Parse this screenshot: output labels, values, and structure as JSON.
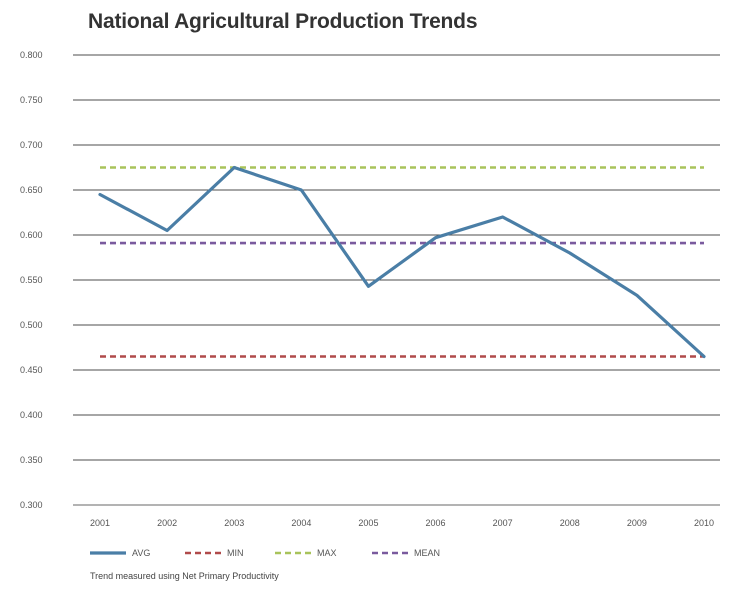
{
  "chart_data": {
    "type": "line",
    "title": "National Agricultural Production Trends",
    "note": "Trend measured using Net Primary Productivity",
    "categories": [
      "2001",
      "2002",
      "2003",
      "2004",
      "2005",
      "2006",
      "2007",
      "2008",
      "2009",
      "2010"
    ],
    "ylim": [
      0.3,
      0.8
    ],
    "yticks": [
      "0.300",
      "0.350",
      "0.400",
      "0.450",
      "0.500",
      "0.550",
      "0.600",
      "0.650",
      "0.700",
      "0.750",
      "0.800"
    ],
    "grid": true,
    "legend_position": "bottom-left",
    "series": [
      {
        "name": "AVG",
        "style": "solid",
        "color": "#4a7ea6",
        "values": [
          0.645,
          0.605,
          0.675,
          0.65,
          0.543,
          0.597,
          0.62,
          0.58,
          0.533,
          0.465
        ]
      },
      {
        "name": "MIN",
        "style": "dashed",
        "color": "#b04a4a",
        "values": [
          0.465,
          0.465,
          0.465,
          0.465,
          0.465,
          0.465,
          0.465,
          0.465,
          0.465,
          0.465
        ]
      },
      {
        "name": "MAX",
        "style": "dashed",
        "color": "#a8c35a",
        "values": [
          0.675,
          0.675,
          0.675,
          0.675,
          0.675,
          0.675,
          0.675,
          0.675,
          0.675,
          0.675
        ]
      },
      {
        "name": "MEAN",
        "style": "dashed",
        "color": "#7a5a9e",
        "values": [
          0.591,
          0.591,
          0.591,
          0.591,
          0.591,
          0.591,
          0.591,
          0.591,
          0.591,
          0.591
        ]
      }
    ]
  }
}
